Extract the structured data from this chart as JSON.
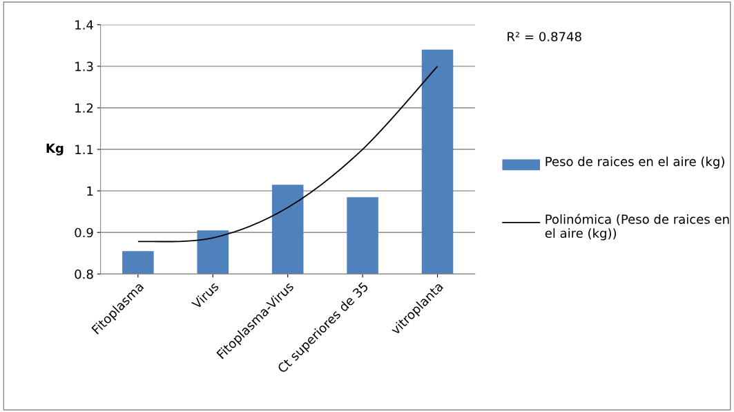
{
  "chart_data": {
    "type": "bar",
    "ylabel": "Kg",
    "categories": [
      "Fitoplasma",
      "Virus",
      "Fitoplasma-Virus",
      "Ct superiores de 35",
      "vitroplanta"
    ],
    "series": [
      {
        "name": "Peso de raices en el aire (kg)",
        "color": "#4f81bd",
        "values": [
          0.855,
          0.905,
          1.015,
          0.985,
          1.34
        ]
      },
      {
        "name": "Polinómica (Peso de raices en el aire (kg))",
        "type": "line",
        "color": "#000000",
        "values": [
          0.878,
          0.887,
          0.96,
          1.1,
          1.3
        ]
      }
    ],
    "ylim": [
      0.8,
      1.4
    ],
    "yticks": [
      0.8,
      0.9,
      1,
      1.1,
      1.2,
      1.3,
      1.4
    ],
    "grid": "y",
    "legend": "right",
    "annotations": [
      "R² = 0.8748"
    ]
  }
}
